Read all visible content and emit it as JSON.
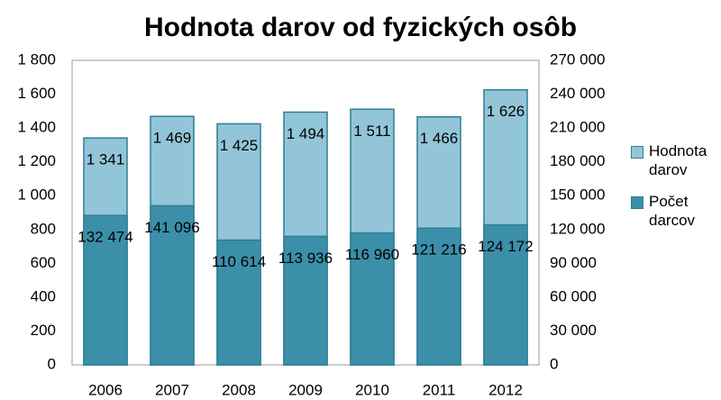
{
  "chart_data": {
    "type": "bar",
    "title": "Hodnota darov od fyzických osôb",
    "categories": [
      "2006",
      "2007",
      "2008",
      "2009",
      "2010",
      "2011",
      "2012"
    ],
    "series": [
      {
        "name": "Hodnota darov",
        "color": "#93c5d9",
        "values": [
          1341,
          1469,
          1425,
          1494,
          1511,
          1466,
          1626
        ],
        "value_labels": [
          "1 341",
          "1 469",
          "1 425",
          "1 494",
          "1 511",
          "1 466",
          "1 626"
        ]
      },
      {
        "name": "Počet darcov",
        "color": "#3c8fa9",
        "axis": "y2",
        "values": [
          132474,
          141096,
          110614,
          113936,
          116960,
          121216,
          124172
        ],
        "value_labels": [
          "132 474",
          "141 096",
          "110 614",
          "113 936",
          "116 960",
          "121 216",
          "124 172"
        ]
      }
    ],
    "ylim": [
      0,
      1800
    ],
    "yticks": [
      0,
      200,
      400,
      600,
      800,
      {
        "value": 1000,
        "label": "1 000"
      },
      {
        "value": 1200,
        "label": "1 200"
      },
      {
        "value": 1400,
        "label": "1 400"
      },
      {
        "value": 1600,
        "label": "1 600"
      },
      {
        "value": 1800,
        "label": "1 800"
      }
    ],
    "y2lim": [
      0,
      270000
    ],
    "y2ticks": [
      0,
      {
        "value": 30000,
        "label": "30 000"
      },
      {
        "value": 60000,
        "label": "60 000"
      },
      {
        "value": 90000,
        "label": "90 000"
      },
      {
        "value": 120000,
        "label": "120 000"
      },
      {
        "value": 150000,
        "label": "150 000"
      },
      {
        "value": 180000,
        "label": "180 000"
      },
      {
        "value": 210000,
        "label": "210 000"
      },
      {
        "value": 240000,
        "label": "240 000"
      },
      {
        "value": 270000,
        "label": "270 000"
      }
    ],
    "grid": false,
    "legend": "right"
  }
}
